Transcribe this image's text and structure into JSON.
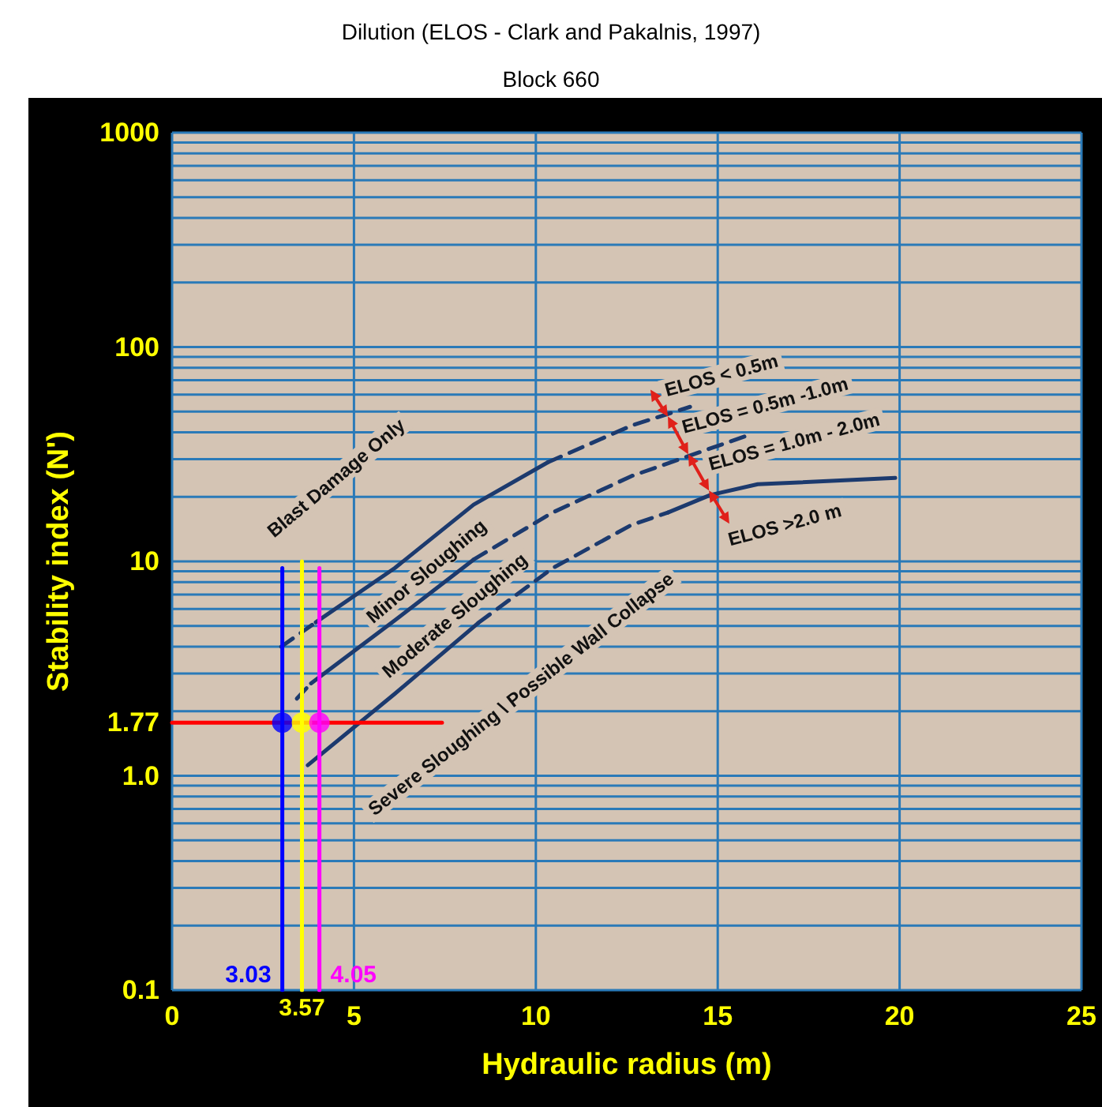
{
  "chart_data": {
    "type": "line",
    "title": "Dilution (ELOS - Clark and Pakalnis, 1997)",
    "subtitle": "Block 660",
    "xlabel": "Hydraulic radius (m)",
    "ylabel": "Stability index (N')",
    "xlim": [
      0,
      25
    ],
    "xticks": [
      0,
      5,
      10,
      15,
      20,
      25
    ],
    "ylim": [
      0.1,
      1000
    ],
    "yticks": [
      0.1,
      {
        "value": 1,
        "label": "1.0"
      },
      1.77,
      10,
      100,
      1000
    ],
    "log": "y",
    "grid": true,
    "marker": "none",
    "series": [
      {
        "color": "#1c3a6e",
        "line_style": "dashed",
        "x": [
          3.0,
          3.95
        ],
        "values": [
          4.0,
          5.2
        ]
      },
      {
        "color": "#1c3a6e",
        "line_style": "solid",
        "x": [
          3.95,
          6.12,
          8.29,
          10.33
        ],
        "values": [
          5.2,
          9.3,
          18.4,
          29
        ]
      },
      {
        "color": "#1c3a6e",
        "line_style": "dashed",
        "x": [
          10.33,
          12.63,
          14.24
        ],
        "values": [
          29,
          43,
          52.6
        ]
      },
      {
        "color": "#1c3a6e",
        "line_style": "dashed",
        "x": [
          3.43,
          3.82
        ],
        "values": [
          2.29,
          2.7
        ]
      },
      {
        "color": "#1c3a6e",
        "line_style": "solid",
        "x": [
          3.82,
          6.12,
          8.29
        ],
        "values": [
          2.7,
          5.3,
          10.2
        ]
      },
      {
        "color": "#1c3a6e",
        "line_style": "dashed",
        "x": [
          8.29,
          10.46,
          12.63,
          15.97
        ],
        "values": [
          10.2,
          16.9,
          25,
          39.5
        ]
      },
      {
        "color": "#1c3a6e",
        "line_style": "solid",
        "x": [
          3.73,
          6.12,
          8.42
        ],
        "values": [
          1.12,
          2.41,
          5.17
        ]
      },
      {
        "color": "#1c3a6e",
        "line_style": "dashed",
        "x": [
          8.42,
          10.46,
          12.63,
          13.63
        ],
        "values": [
          5.17,
          9.3,
          14.8,
          16.9
        ]
      },
      {
        "color": "#1c3a6e",
        "line_style": "solid",
        "x": [
          13.63,
          14.8,
          16.1,
          19.88
        ],
        "values": [
          16.9,
          20.4,
          22.9,
          24.5
        ]
      },
      {
        "color": "#ff0000",
        "line_style": "solid",
        "x": [
          0,
          7.42
        ],
        "values": [
          1.77,
          1.77
        ]
      },
      {
        "color": "#0000ff",
        "line_style": "solid",
        "x": [
          3.03,
          3.03
        ],
        "values": [
          0.1,
          9.3
        ]
      },
      {
        "color": "#ffff00",
        "line_style": "solid",
        "x": [
          3.57,
          3.57
        ],
        "values": [
          0.1,
          10
        ]
      },
      {
        "color": "#ff00ff",
        "line_style": "solid",
        "x": [
          4.05,
          4.05
        ],
        "values": [
          0.1,
          9.3
        ]
      },
      {
        "type": "scatter",
        "marker": "circle",
        "color": "#0000ff",
        "x": [
          3.03
        ],
        "values": [
          1.77
        ]
      },
      {
        "type": "scatter",
        "marker": "circle",
        "color": "#ffff00",
        "x": [
          3.57
        ],
        "values": [
          1.77
        ]
      },
      {
        "type": "scatter",
        "marker": "circle",
        "color": "#ff00ff",
        "x": [
          4.05
        ],
        "values": [
          1.77
        ]
      }
    ],
    "annotations": [
      "Blast Damage Only",
      "Minor Sloughing",
      "Moderate Sloughing",
      "Severe Sloughing \\ Possible Wall Collapse",
      "ELOS < 0.5m",
      "ELOS = 0.5m -1.0m",
      "ELOS = 1.0m - 2.0m",
      "ELOS >2.0 m",
      {
        "text": "3.03",
        "x": 3.03,
        "y": 0.1
      },
      {
        "text": "3.57",
        "x": 3.57,
        "y": 0.1
      },
      {
        "text": "4.05",
        "x": 4.05,
        "y": 0.1
      }
    ]
  }
}
